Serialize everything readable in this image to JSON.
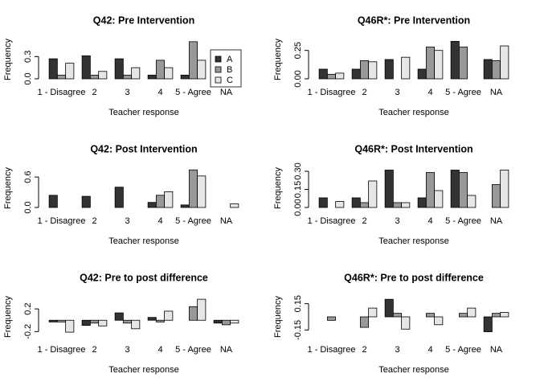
{
  "chart_data": [
    {
      "type": "bar",
      "title": "Q42: Pre Intervention",
      "xlabel": "Teacher response",
      "ylabel": "Frequency",
      "categories": [
        "1 - Disagree",
        "2",
        "3",
        "4",
        "5 - Agree",
        "NA"
      ],
      "series": [
        {
          "name": "A",
          "color": "#333333",
          "values": [
            0.27,
            0.31,
            0.27,
            0.05,
            0.05,
            0
          ]
        },
        {
          "name": "B",
          "color": "#999999",
          "values": [
            0.05,
            0.05,
            0.05,
            0.25,
            0.5,
            0
          ]
        },
        {
          "name": "C",
          "color": "#e6e6e6",
          "values": [
            0.21,
            0.1,
            0.15,
            0.15,
            0.25,
            0
          ]
        }
      ],
      "ylim": [
        0,
        0.52
      ],
      "yticks": [
        {
          "value": 0,
          "label": "0.0"
        },
        0.3
      ],
      "legend": "top-right"
    },
    {
      "type": "bar",
      "title": "Q46R*: Pre Intervention",
      "xlabel": "Teacher response",
      "ylabel": "Frequency",
      "categories": [
        "1 - Disagree",
        "2",
        "3",
        "4",
        "5 - Agree",
        "NA"
      ],
      "series": [
        {
          "name": "A",
          "color": "#333333",
          "values": [
            0.085,
            0.085,
            0.17,
            0.085,
            0.33,
            0.17
          ]
        },
        {
          "name": "B",
          "color": "#999999",
          "values": [
            0.04,
            0.16,
            0,
            0.28,
            0.28,
            0.16
          ]
        },
        {
          "name": "C",
          "color": "#e6e6e6",
          "values": [
            0.05,
            0.15,
            0.19,
            0.25,
            0,
            0.29
          ]
        }
      ],
      "ylim": [
        0,
        0.34
      ],
      "yticks": [
        {
          "value": 0,
          "label": "0.00"
        },
        {
          "value": 0.25,
          "label": "0.25"
        }
      ]
    },
    {
      "type": "bar",
      "title": "Q42: Post Intervention",
      "xlabel": "Teacher response",
      "ylabel": "Frequency",
      "categories": [
        "1 - Disagree",
        "2",
        "3",
        "4",
        "5 - Agree",
        "NA"
      ],
      "series": [
        {
          "name": "A",
          "color": "#333333",
          "values": [
            0.24,
            0.22,
            0.4,
            0.1,
            0.05,
            0
          ]
        },
        {
          "name": "B",
          "color": "#999999",
          "values": [
            0,
            0,
            0,
            0.24,
            0.74,
            0
          ]
        },
        {
          "name": "C",
          "color": "#e6e6e6",
          "values": [
            0,
            0,
            0,
            0.31,
            0.62,
            0.07
          ]
        }
      ],
      "ylim": [
        0,
        0.76
      ],
      "yticks": [
        {
          "value": 0,
          "label": "0.0"
        },
        0.6
      ]
    },
    {
      "type": "bar",
      "title": "Q46R*: Post Intervention",
      "xlabel": "Teacher response",
      "ylabel": "Frequency",
      "categories": [
        "1 - Disagree",
        "2",
        "3",
        "4",
        "5 - Agree",
        "NA"
      ],
      "series": [
        {
          "name": "A",
          "color": "#333333",
          "values": [
            0.08,
            0.08,
            0.31,
            0.08,
            0.31,
            0
          ]
        },
        {
          "name": "B",
          "color": "#999999",
          "values": [
            0,
            0.04,
            0.04,
            0.29,
            0.29,
            0.19
          ]
        },
        {
          "name": "C",
          "color": "#e6e6e6",
          "values": [
            0.05,
            0.22,
            0.04,
            0.14,
            0.1,
            0.31
          ]
        }
      ],
      "ylim": [
        0,
        0.32
      ],
      "yticks": [
        {
          "value": 0,
          "label": "0.00"
        },
        0.15,
        {
          "value": 0.3,
          "label": "0.30"
        }
      ]
    },
    {
      "type": "bar",
      "title": "Q42: Pre to post difference",
      "xlabel": "Teacher response",
      "ylabel": "Frequency",
      "categories": [
        "1 - Disagree",
        "2",
        "3",
        "4",
        "5 - Agree",
        "NA"
      ],
      "series": [
        {
          "name": "A",
          "color": "#333333",
          "values": [
            -0.03,
            -0.09,
            0.13,
            0.05,
            0,
            -0.05
          ]
        },
        {
          "name": "B",
          "color": "#999999",
          "values": [
            -0.03,
            -0.05,
            -0.05,
            -0.03,
            0.24,
            -0.08
          ]
        },
        {
          "name": "C",
          "color": "#e6e6e6",
          "values": [
            -0.21,
            -0.1,
            -0.15,
            0.16,
            0.37,
            -0.05
          ]
        }
      ],
      "ylim": [
        -0.28,
        0.4
      ],
      "yticks": [
        -0.2,
        0.2
      ]
    },
    {
      "type": "bar",
      "title": "Q46R*: Pre to post difference",
      "xlabel": "Teacher response",
      "ylabel": "Frequency",
      "categories": [
        "1 - Disagree",
        "2",
        "3",
        "4",
        "5 - Agree",
        "NA"
      ],
      "series": [
        {
          "name": "A",
          "color": "#333333",
          "values": [
            0,
            0,
            0.2,
            0,
            0,
            -0.17
          ]
        },
        {
          "name": "B",
          "color": "#999999",
          "values": [
            -0.04,
            -0.12,
            0.04,
            0.04,
            0.04,
            0.04
          ]
        },
        {
          "name": "C",
          "color": "#e6e6e6",
          "values": [
            0,
            0.1,
            -0.14,
            -0.09,
            0.1,
            0.05
          ]
        }
      ],
      "ylim": [
        -0.22,
        0.22
      ],
      "yticks": [
        -0.15,
        0.15
      ]
    }
  ]
}
